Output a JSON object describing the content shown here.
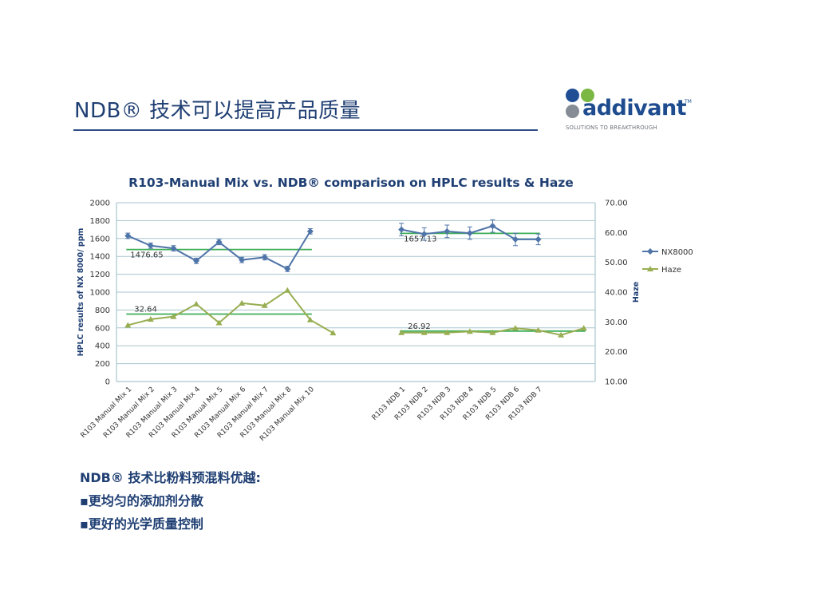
{
  "slide": {
    "title": "NDB® 技术可以提高产品质量",
    "logo_text": "addivant",
    "logo_tm": "TM",
    "logo_tagline": "SOLUTIONS TO BREAKTHROUGH",
    "bullets": [
      "NDB® 技术比粉料预混料优越:",
      "▪更均匀的添加剂分散",
      "▪更好的光学质量控制"
    ]
  },
  "colors": {
    "nx8000": "#4f74a8",
    "haze": "#98ae52",
    "average": "#3fae59",
    "grid": "#a9c6cf",
    "axis": "#1f3f73",
    "title": "#1f3f73",
    "logo_dots": [
      "#1f4e95",
      "#7ab744",
      "#868c95",
      "#4aa84c"
    ]
  },
  "chart_data": {
    "type": "line",
    "title": "R103-Manual Mix vs. NDB® comparison on HPLC results & Haze",
    "ylabel": "HPLC results of NX 8000/ ppm",
    "y2label": "Haze",
    "ylim": [
      0,
      2000
    ],
    "y2lim": [
      10,
      70
    ],
    "yticks": [
      "0",
      "200",
      "400",
      "600",
      "800",
      "1000",
      "1200",
      "1400",
      "1600",
      "1800",
      "2000"
    ],
    "y2ticks": [
      "10.00",
      "20.00",
      "30.00",
      "40.00",
      "50.00",
      "60.00",
      "70.00"
    ],
    "grid": true,
    "legend_position": "right",
    "categories": [
      "R103 Manual Mix 1",
      "R103 Manual Mix 2",
      "R103 Manual Mix 3",
      "R103 Manual Mix 4",
      "R103 Manual Mix 5",
      "R103 Manual Mix 6",
      "R103 Manual Mix 7",
      "R103 Manual Mix 8",
      "R103 Manual Mix 10",
      "",
      "",
      "",
      "R103 NDB 1",
      "R103 NDB 2",
      "R103 NDB 3",
      "R103 NDB 4",
      "R103 NDB 5",
      "R103 NDB 6",
      "R103 NDB 7",
      "",
      ""
    ],
    "series": [
      {
        "name": "NX8000",
        "axis": "left",
        "marker": "diamond",
        "values": [
          1630,
          1520,
          1490,
          1350,
          1560,
          1360,
          1390,
          1260,
          1680,
          null,
          null,
          null,
          1700,
          1650,
          1680,
          1660,
          1740,
          1590,
          1590,
          null,
          null
        ],
        "error": [
          30,
          30,
          30,
          30,
          30,
          30,
          30,
          30,
          30,
          null,
          null,
          null,
          70,
          70,
          70,
          70,
          70,
          70,
          60,
          null,
          null
        ]
      },
      {
        "name": "Haze",
        "axis": "right",
        "marker": "triangle",
        "values": [
          28.9,
          30.9,
          31.8,
          36.0,
          29.7,
          36.3,
          35.5,
          40.6,
          30.7,
          26.3,
          null,
          null,
          26.4,
          26.4,
          26.4,
          26.8,
          26.4,
          27.9,
          27.2,
          25.6,
          27.9
        ]
      }
    ],
    "averages": [
      {
        "label": "1476.65",
        "axis": "left",
        "value": 1476.65,
        "from": 0,
        "to": 8
      },
      {
        "label": "1657.13",
        "axis": "left",
        "value": 1657.13,
        "from": 12,
        "to": 18
      },
      {
        "label": "32.64",
        "axis": "right",
        "value": 32.64,
        "from": 0,
        "to": 8
      },
      {
        "label": "26.92",
        "axis": "right",
        "value": 26.92,
        "from": 12,
        "to": 20
      }
    ]
  }
}
